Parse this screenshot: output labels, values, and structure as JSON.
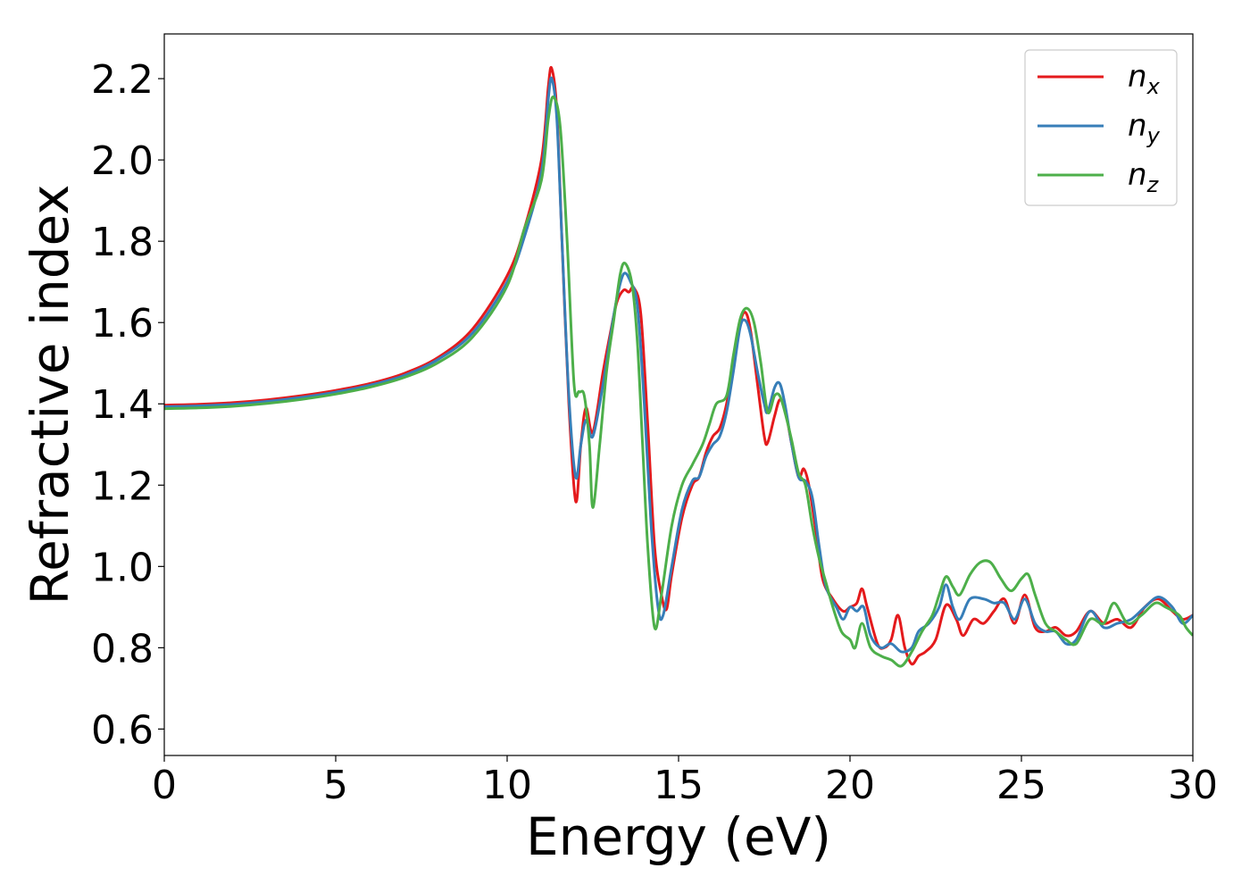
{
  "chart_data": {
    "type": "line",
    "title": "",
    "xlabel": "Energy (eV)",
    "ylabel": "Refractive index",
    "xlim": [
      0,
      30
    ],
    "ylim": [
      0.535,
      2.31
    ],
    "xticks": [
      0,
      5,
      10,
      15,
      20,
      25,
      30
    ],
    "yticks": [
      0.6,
      0.8,
      1.0,
      1.2,
      1.4,
      1.6,
      1.8,
      2.0,
      2.2
    ],
    "xtick_labels": [
      "0",
      "5",
      "10",
      "15",
      "20",
      "25",
      "30"
    ],
    "ytick_labels": [
      "0.6",
      "0.8",
      "1.0",
      "1.2",
      "1.4",
      "1.6",
      "1.8",
      "2.0",
      "2.2"
    ],
    "grid": false,
    "legend_position": "top-right",
    "series": [
      {
        "name": "n",
        "subscript": "x",
        "color": "#e41a1c",
        "points": [
          [
            0,
            1.397
          ],
          [
            1,
            1.399
          ],
          [
            2,
            1.403
          ],
          [
            3,
            1.41
          ],
          [
            4,
            1.42
          ],
          [
            5,
            1.433
          ],
          [
            6,
            1.45
          ],
          [
            7,
            1.475
          ],
          [
            8,
            1.515
          ],
          [
            9,
            1.585
          ],
          [
            10,
            1.715
          ],
          [
            10.5,
            1.83
          ],
          [
            11,
            2.0
          ],
          [
            11.2,
            2.18
          ],
          [
            11.3,
            2.225
          ],
          [
            11.45,
            2.12
          ],
          [
            11.6,
            1.8
          ],
          [
            11.8,
            1.4
          ],
          [
            12.0,
            1.16
          ],
          [
            12.15,
            1.3
          ],
          [
            12.3,
            1.39
          ],
          [
            12.5,
            1.33
          ],
          [
            12.8,
            1.48
          ],
          [
            13.0,
            1.57
          ],
          [
            13.2,
            1.65
          ],
          [
            13.4,
            1.68
          ],
          [
            13.55,
            1.675
          ],
          [
            13.7,
            1.685
          ],
          [
            13.9,
            1.62
          ],
          [
            14.1,
            1.35
          ],
          [
            14.3,
            1.05
          ],
          [
            14.5,
            0.93
          ],
          [
            14.65,
            0.895
          ],
          [
            14.8,
            0.98
          ],
          [
            15.1,
            1.12
          ],
          [
            15.4,
            1.2
          ],
          [
            15.6,
            1.22
          ],
          [
            15.8,
            1.28
          ],
          [
            16.0,
            1.32
          ],
          [
            16.2,
            1.34
          ],
          [
            16.4,
            1.4
          ],
          [
            16.6,
            1.5
          ],
          [
            16.8,
            1.6
          ],
          [
            16.95,
            1.625
          ],
          [
            17.1,
            1.58
          ],
          [
            17.3,
            1.45
          ],
          [
            17.5,
            1.32
          ],
          [
            17.6,
            1.305
          ],
          [
            17.8,
            1.37
          ],
          [
            17.95,
            1.41
          ],
          [
            18.1,
            1.39
          ],
          [
            18.3,
            1.3
          ],
          [
            18.5,
            1.22
          ],
          [
            18.65,
            1.24
          ],
          [
            18.8,
            1.2
          ],
          [
            19.0,
            1.09
          ],
          [
            19.2,
            0.97
          ],
          [
            19.5,
            0.92
          ],
          [
            19.8,
            0.89
          ],
          [
            20.0,
            0.9
          ],
          [
            20.2,
            0.91
          ],
          [
            20.35,
            0.945
          ],
          [
            20.5,
            0.9
          ],
          [
            20.8,
            0.81
          ],
          [
            21.0,
            0.8
          ],
          [
            21.2,
            0.82
          ],
          [
            21.4,
            0.88
          ],
          [
            21.6,
            0.8
          ],
          [
            21.8,
            0.76
          ],
          [
            22.0,
            0.78
          ],
          [
            22.2,
            0.79
          ],
          [
            22.5,
            0.82
          ],
          [
            22.8,
            0.905
          ],
          [
            23.1,
            0.87
          ],
          [
            23.3,
            0.83
          ],
          [
            23.6,
            0.87
          ],
          [
            23.9,
            0.86
          ],
          [
            24.2,
            0.89
          ],
          [
            24.5,
            0.92
          ],
          [
            24.8,
            0.86
          ],
          [
            25.1,
            0.93
          ],
          [
            25.4,
            0.85
          ],
          [
            25.7,
            0.84
          ],
          [
            26.0,
            0.85
          ],
          [
            26.3,
            0.83
          ],
          [
            26.6,
            0.84
          ],
          [
            27.0,
            0.89
          ],
          [
            27.4,
            0.86
          ],
          [
            27.8,
            0.87
          ],
          [
            28.2,
            0.85
          ],
          [
            28.6,
            0.9
          ],
          [
            29.0,
            0.92
          ],
          [
            29.4,
            0.89
          ],
          [
            29.7,
            0.87
          ],
          [
            30.0,
            0.88
          ]
        ]
      },
      {
        "name": "n",
        "subscript": "y",
        "color": "#377eb8",
        "points": [
          [
            0,
            1.393
          ],
          [
            1,
            1.395
          ],
          [
            2,
            1.399
          ],
          [
            3,
            1.406
          ],
          [
            4,
            1.416
          ],
          [
            5,
            1.429
          ],
          [
            6,
            1.446
          ],
          [
            7,
            1.47
          ],
          [
            8,
            1.51
          ],
          [
            9,
            1.575
          ],
          [
            10,
            1.7
          ],
          [
            10.5,
            1.81
          ],
          [
            11,
            1.97
          ],
          [
            11.2,
            2.15
          ],
          [
            11.3,
            2.2
          ],
          [
            11.45,
            2.1
          ],
          [
            11.6,
            1.8
          ],
          [
            11.8,
            1.42
          ],
          [
            12.0,
            1.22
          ],
          [
            12.15,
            1.3
          ],
          [
            12.3,
            1.36
          ],
          [
            12.5,
            1.32
          ],
          [
            12.8,
            1.45
          ],
          [
            13.0,
            1.56
          ],
          [
            13.2,
            1.66
          ],
          [
            13.4,
            1.72
          ],
          [
            13.6,
            1.7
          ],
          [
            13.8,
            1.64
          ],
          [
            14.0,
            1.4
          ],
          [
            14.2,
            1.1
          ],
          [
            14.4,
            0.9
          ],
          [
            14.55,
            0.88
          ],
          [
            14.8,
            1.0
          ],
          [
            15.1,
            1.14
          ],
          [
            15.4,
            1.21
          ],
          [
            15.6,
            1.22
          ],
          [
            15.8,
            1.27
          ],
          [
            16.0,
            1.3
          ],
          [
            16.2,
            1.32
          ],
          [
            16.4,
            1.38
          ],
          [
            16.6,
            1.48
          ],
          [
            16.8,
            1.59
          ],
          [
            16.95,
            1.605
          ],
          [
            17.1,
            1.57
          ],
          [
            17.3,
            1.48
          ],
          [
            17.5,
            1.4
          ],
          [
            17.6,
            1.38
          ],
          [
            17.8,
            1.44
          ],
          [
            17.95,
            1.45
          ],
          [
            18.1,
            1.4
          ],
          [
            18.3,
            1.3
          ],
          [
            18.5,
            1.22
          ],
          [
            18.7,
            1.21
          ],
          [
            18.9,
            1.17
          ],
          [
            19.1,
            1.05
          ],
          [
            19.3,
            0.95
          ],
          [
            19.6,
            0.9
          ],
          [
            19.8,
            0.87
          ],
          [
            20.0,
            0.9
          ],
          [
            20.2,
            0.89
          ],
          [
            20.4,
            0.9
          ],
          [
            20.6,
            0.83
          ],
          [
            20.9,
            0.8
          ],
          [
            21.2,
            0.81
          ],
          [
            21.5,
            0.79
          ],
          [
            21.8,
            0.8
          ],
          [
            22.0,
            0.84
          ],
          [
            22.3,
            0.86
          ],
          [
            22.6,
            0.9
          ],
          [
            22.8,
            0.955
          ],
          [
            23.0,
            0.9
          ],
          [
            23.2,
            0.87
          ],
          [
            23.5,
            0.92
          ],
          [
            23.9,
            0.92
          ],
          [
            24.2,
            0.91
          ],
          [
            24.5,
            0.91
          ],
          [
            24.8,
            0.87
          ],
          [
            25.1,
            0.92
          ],
          [
            25.4,
            0.86
          ],
          [
            25.7,
            0.84
          ],
          [
            26.0,
            0.84
          ],
          [
            26.3,
            0.81
          ],
          [
            26.6,
            0.82
          ],
          [
            27.0,
            0.89
          ],
          [
            27.4,
            0.85
          ],
          [
            27.8,
            0.86
          ],
          [
            28.2,
            0.87
          ],
          [
            28.6,
            0.9
          ],
          [
            29.0,
            0.925
          ],
          [
            29.4,
            0.9
          ],
          [
            29.7,
            0.86
          ],
          [
            30.0,
            0.88
          ]
        ]
      },
      {
        "name": "n",
        "subscript": "z",
        "color": "#4daf4a",
        "points": [
          [
            0,
            1.388
          ],
          [
            1,
            1.39
          ],
          [
            2,
            1.394
          ],
          [
            3,
            1.401
          ],
          [
            4,
            1.411
          ],
          [
            5,
            1.424
          ],
          [
            6,
            1.441
          ],
          [
            7,
            1.465
          ],
          [
            8,
            1.502
          ],
          [
            9,
            1.565
          ],
          [
            10,
            1.69
          ],
          [
            10.5,
            1.83
          ],
          [
            11,
            1.95
          ],
          [
            11.2,
            2.1
          ],
          [
            11.35,
            2.155
          ],
          [
            11.55,
            2.08
          ],
          [
            11.75,
            1.8
          ],
          [
            11.95,
            1.45
          ],
          [
            12.1,
            1.43
          ],
          [
            12.25,
            1.42
          ],
          [
            12.4,
            1.3
          ],
          [
            12.5,
            1.145
          ],
          [
            12.7,
            1.3
          ],
          [
            12.9,
            1.48
          ],
          [
            13.1,
            1.6
          ],
          [
            13.3,
            1.72
          ],
          [
            13.45,
            1.745
          ],
          [
            13.65,
            1.69
          ],
          [
            13.8,
            1.55
          ],
          [
            13.95,
            1.3
          ],
          [
            14.1,
            1.05
          ],
          [
            14.3,
            0.85
          ],
          [
            14.5,
            0.93
          ],
          [
            14.8,
            1.1
          ],
          [
            15.1,
            1.2
          ],
          [
            15.4,
            1.25
          ],
          [
            15.7,
            1.3
          ],
          [
            15.9,
            1.35
          ],
          [
            16.1,
            1.4
          ],
          [
            16.4,
            1.42
          ],
          [
            16.6,
            1.52
          ],
          [
            16.8,
            1.61
          ],
          [
            17.0,
            1.635
          ],
          [
            17.2,
            1.6
          ],
          [
            17.4,
            1.5
          ],
          [
            17.6,
            1.38
          ],
          [
            17.8,
            1.42
          ],
          [
            17.95,
            1.42
          ],
          [
            18.1,
            1.38
          ],
          [
            18.3,
            1.31
          ],
          [
            18.5,
            1.23
          ],
          [
            18.7,
            1.2
          ],
          [
            18.9,
            1.1
          ],
          [
            19.1,
            1.02
          ],
          [
            19.3,
            0.96
          ],
          [
            19.5,
            0.9
          ],
          [
            19.75,
            0.84
          ],
          [
            20.0,
            0.82
          ],
          [
            20.15,
            0.8
          ],
          [
            20.35,
            0.86
          ],
          [
            20.6,
            0.8
          ],
          [
            20.9,
            0.78
          ],
          [
            21.2,
            0.77
          ],
          [
            21.5,
            0.755
          ],
          [
            21.8,
            0.79
          ],
          [
            22.1,
            0.84
          ],
          [
            22.4,
            0.88
          ],
          [
            22.6,
            0.93
          ],
          [
            22.8,
            0.975
          ],
          [
            23.0,
            0.95
          ],
          [
            23.2,
            0.93
          ],
          [
            23.5,
            0.98
          ],
          [
            23.8,
            1.01
          ],
          [
            24.1,
            1.01
          ],
          [
            24.4,
            0.97
          ],
          [
            24.7,
            0.94
          ],
          [
            25.0,
            0.97
          ],
          [
            25.2,
            0.98
          ],
          [
            25.4,
            0.93
          ],
          [
            25.7,
            0.86
          ],
          [
            26.0,
            0.84
          ],
          [
            26.3,
            0.82
          ],
          [
            26.6,
            0.81
          ],
          [
            27.0,
            0.87
          ],
          [
            27.4,
            0.86
          ],
          [
            27.7,
            0.91
          ],
          [
            28.1,
            0.86
          ],
          [
            28.5,
            0.88
          ],
          [
            28.9,
            0.91
          ],
          [
            29.2,
            0.9
          ],
          [
            29.6,
            0.88
          ],
          [
            29.8,
            0.85
          ],
          [
            30.0,
            0.83
          ]
        ]
      }
    ]
  }
}
